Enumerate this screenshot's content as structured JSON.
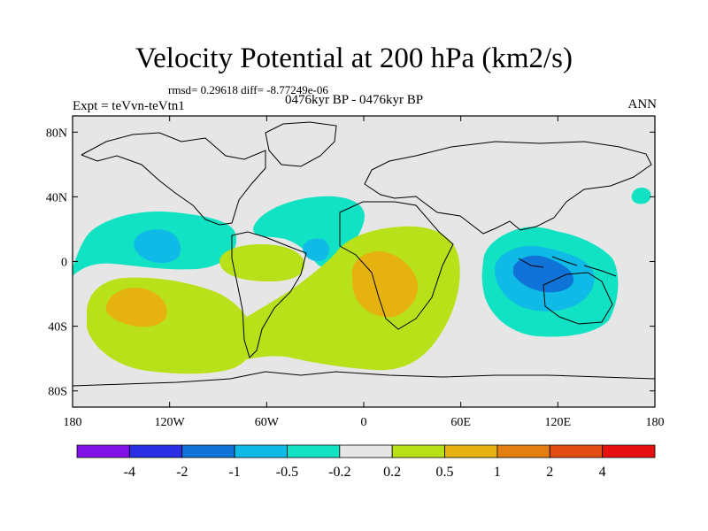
{
  "header": {
    "title": "Velocity Potential at 200 hPa (km2/s)",
    "stats": "rmsd= 0.29618 diff= -8.77249e-06",
    "period": "0476kyr BP - 0476kyr BP",
    "experiment": "Expt = teVvn-teVtn1",
    "season": "ANN"
  },
  "axes": {
    "lat_ticks": [
      {
        "label": "80N",
        "value": 80
      },
      {
        "label": "40N",
        "value": 40
      },
      {
        "label": "0",
        "value": 0
      },
      {
        "label": "40S",
        "value": -40
      },
      {
        "label": "80S",
        "value": -80
      }
    ],
    "lon_ticks": [
      {
        "label": "180",
        "value": -180
      },
      {
        "label": "120W",
        "value": -120
      },
      {
        "label": "60W",
        "value": -60
      },
      {
        "label": "0",
        "value": 0
      },
      {
        "label": "60E",
        "value": 60
      },
      {
        "label": "120E",
        "value": 120
      },
      {
        "label": "180",
        "value": 180
      }
    ],
    "lon_range": [
      -180,
      180
    ],
    "lat_range": [
      -90,
      90
    ]
  },
  "colorbar": {
    "colors": [
      "#7f13e6",
      "#2a2ee4",
      "#0f73d8",
      "#0fbbe6",
      "#11e2c4",
      "#e6e6e6",
      "#b9e11a",
      "#e6b20f",
      "#e47e10",
      "#e24d13",
      "#e61010"
    ],
    "labels": [
      "-4",
      "-2",
      "-1",
      "-0.5",
      "-0.2",
      "0.2",
      "0.5",
      "1",
      "2",
      "4"
    ]
  },
  "fields": [
    {
      "lon": -140,
      "lat": 11,
      "level": "-0.2"
    },
    {
      "lon": -132,
      "lat": 8,
      "level": "-0.5"
    },
    {
      "lon": -60,
      "lat": 16,
      "level": "-0.2"
    },
    {
      "lon": -30,
      "lat": 5,
      "level": "-0.5"
    },
    {
      "lon": 110,
      "lat": -5,
      "level": "-0.2"
    },
    {
      "lon": 108,
      "lat": -8,
      "level": "-0.5"
    },
    {
      "lon": 102,
      "lat": -4,
      "level": "-1"
    },
    {
      "lon": 140,
      "lat": 37,
      "level": "-0.2"
    },
    {
      "lon": -65,
      "lat": 0,
      "level": "0.2"
    },
    {
      "lon": 20,
      "lat": -15,
      "level": "0.2"
    },
    {
      "lon": 15,
      "lat": -10,
      "level": "0.5"
    },
    {
      "lon": -135,
      "lat": -25,
      "level": "0.2"
    },
    {
      "lon": -135,
      "lat": -27,
      "level": "0.5"
    }
  ]
}
